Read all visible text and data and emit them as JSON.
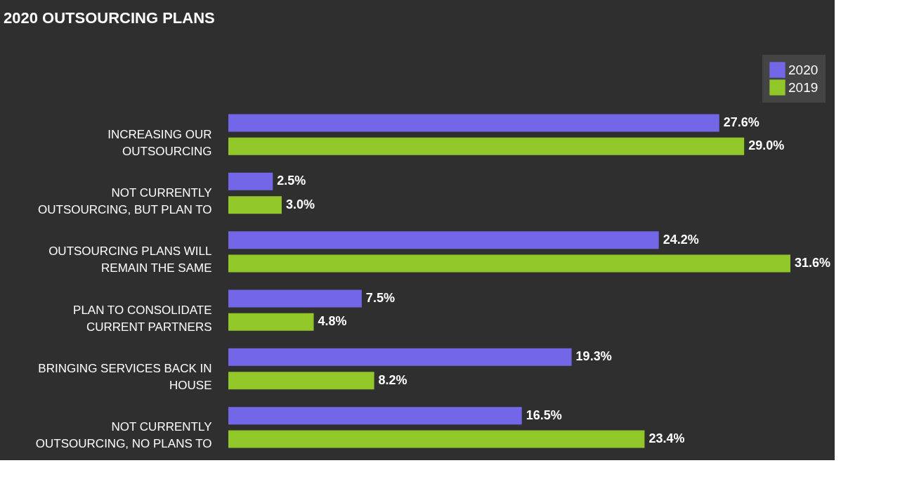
{
  "chart_data": {
    "type": "bar",
    "orientation": "horizontal",
    "title": "2020 OUTSOURCING PLANS",
    "categories": [
      "INCREASING OUR OUTSOURCING",
      "NOT CURRENTLY OUTSOURCING, BUT PLAN TO",
      "OUTSOURCING PLANS WILL REMAIN THE SAME",
      "PLAN TO CONSOLIDATE CURRENT PARTNERS",
      "BRINGING SERVICES BACK IN HOUSE",
      "NOT CURRENTLY OUTSOURCING, NO PLANS TO"
    ],
    "series": [
      {
        "name": "2020",
        "color": "#7367e8",
        "values": [
          27.6,
          2.5,
          24.2,
          7.5,
          19.3,
          16.5
        ],
        "value_labels": [
          "27.6%",
          "2.5%",
          "24.2%",
          "7.5%",
          "19.3%",
          "16.5%"
        ]
      },
      {
        "name": "2019",
        "color": "#92c72a",
        "values": [
          29.0,
          3.0,
          31.6,
          4.8,
          8.2,
          23.4
        ],
        "value_labels": [
          "29.0%",
          "3.0%",
          "31.6%",
          "4.8%",
          "8.2%",
          "23.4%"
        ]
      }
    ],
    "legend": "top right",
    "grid": false
  }
}
